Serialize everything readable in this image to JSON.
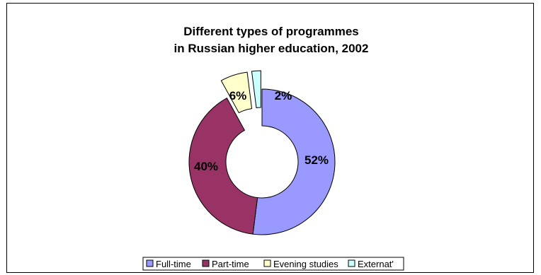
{
  "chart_data": {
    "type": "pie",
    "variant": "exploded-doughnut",
    "title_lines": [
      "Different types of programmes",
      "in Russian higher education, 2002"
    ],
    "labels": [
      "Full-time",
      "Part-time",
      "Evening studies",
      "Externat'"
    ],
    "values": [
      52,
      40,
      6,
      2
    ],
    "data_labels": [
      "52%",
      "40%",
      "6%",
      "2%"
    ],
    "colors": [
      "#9999ff",
      "#993366",
      "#ffffcc",
      "#ccffff"
    ],
    "legend_position": "bottom",
    "outline_color": "#000000"
  }
}
